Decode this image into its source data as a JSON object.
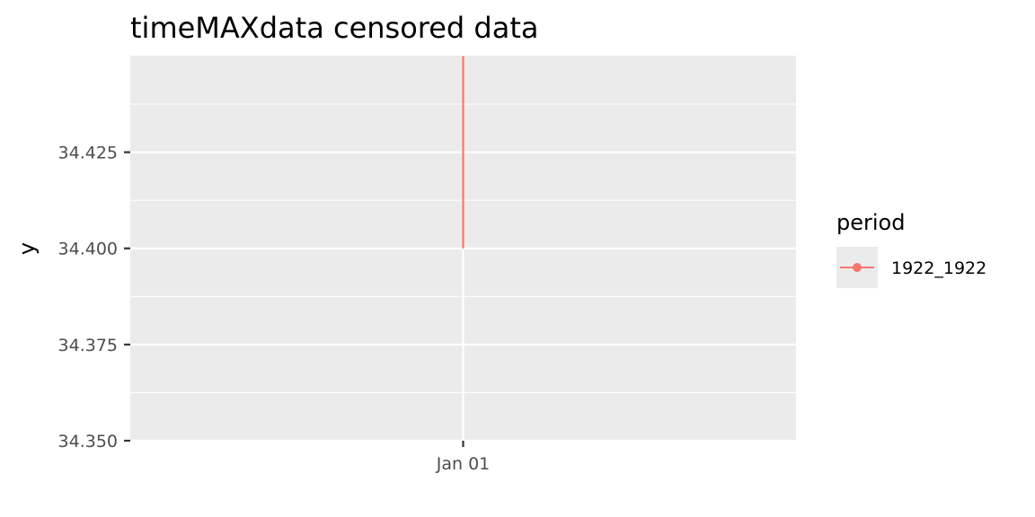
{
  "chart_data": {
    "type": "line",
    "title": "timeMAXdata censored data",
    "xlabel": "",
    "ylabel": "y",
    "x_tick_labels": [
      "Jan 01"
    ],
    "y_ticks": [
      34.35,
      34.375,
      34.4,
      34.425
    ],
    "y_tick_labels": [
      "34.350",
      "34.375",
      "34.400",
      "34.425"
    ],
    "ylim": [
      34.35,
      34.4501
    ],
    "grid": true,
    "legend_position": "right",
    "legend_title": "period",
    "series": [
      {
        "name": "1922_1922",
        "color": "#f8766d",
        "x": "Jan 01",
        "y_from": 34.4,
        "y_to": 34.45
      }
    ],
    "colors": {
      "panel_background": "#ebebeb",
      "grid": "#ffffff",
      "tick_text": "#4d4d4d"
    }
  }
}
